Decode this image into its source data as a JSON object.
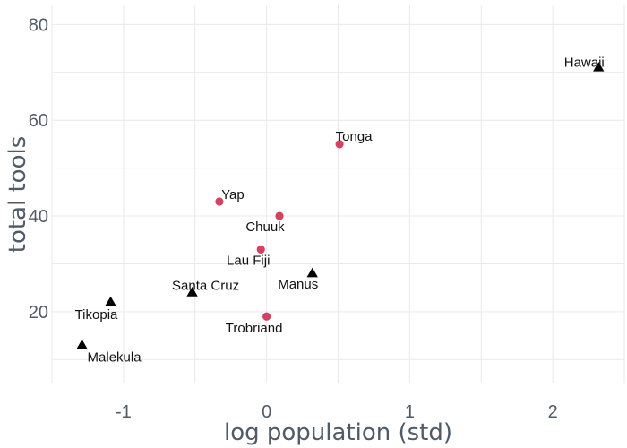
{
  "chart_data": {
    "type": "scatter",
    "title": "",
    "xlabel": "log population (std)",
    "ylabel": "total tools",
    "xlim": [
      -1.5,
      2.5
    ],
    "ylim": [
      5,
      84
    ],
    "x_ticks": [
      -1,
      0,
      1,
      2
    ],
    "y_ticks": [
      20,
      40,
      60,
      80
    ],
    "grid": true,
    "legend": "none",
    "colors": {
      "circle_group": "#d3425f",
      "triangle_group": "#000000",
      "grid": "#e9e9e9",
      "axis_text": "#4f5b66",
      "point_label": "#111111"
    },
    "points": [
      {
        "label": "Malekula",
        "x": -1.29,
        "y": 13,
        "shape": "triangle"
      },
      {
        "label": "Tikopia",
        "x": -1.09,
        "y": 22,
        "shape": "triangle"
      },
      {
        "label": "Santa Cruz",
        "x": -0.52,
        "y": 24,
        "shape": "triangle"
      },
      {
        "label": "Yap",
        "x": -0.33,
        "y": 43,
        "shape": "circle"
      },
      {
        "label": "Lau Fiji",
        "x": -0.04,
        "y": 33,
        "shape": "circle"
      },
      {
        "label": "Trobriand",
        "x": 0.0,
        "y": 19,
        "shape": "circle"
      },
      {
        "label": "Chuuk",
        "x": 0.09,
        "y": 40,
        "shape": "circle"
      },
      {
        "label": "Manus",
        "x": 0.32,
        "y": 28,
        "shape": "triangle"
      },
      {
        "label": "Tonga",
        "x": 0.51,
        "y": 55,
        "shape": "circle"
      },
      {
        "label": "Hawaii",
        "x": 2.32,
        "y": 71,
        "shape": "triangle"
      }
    ]
  }
}
